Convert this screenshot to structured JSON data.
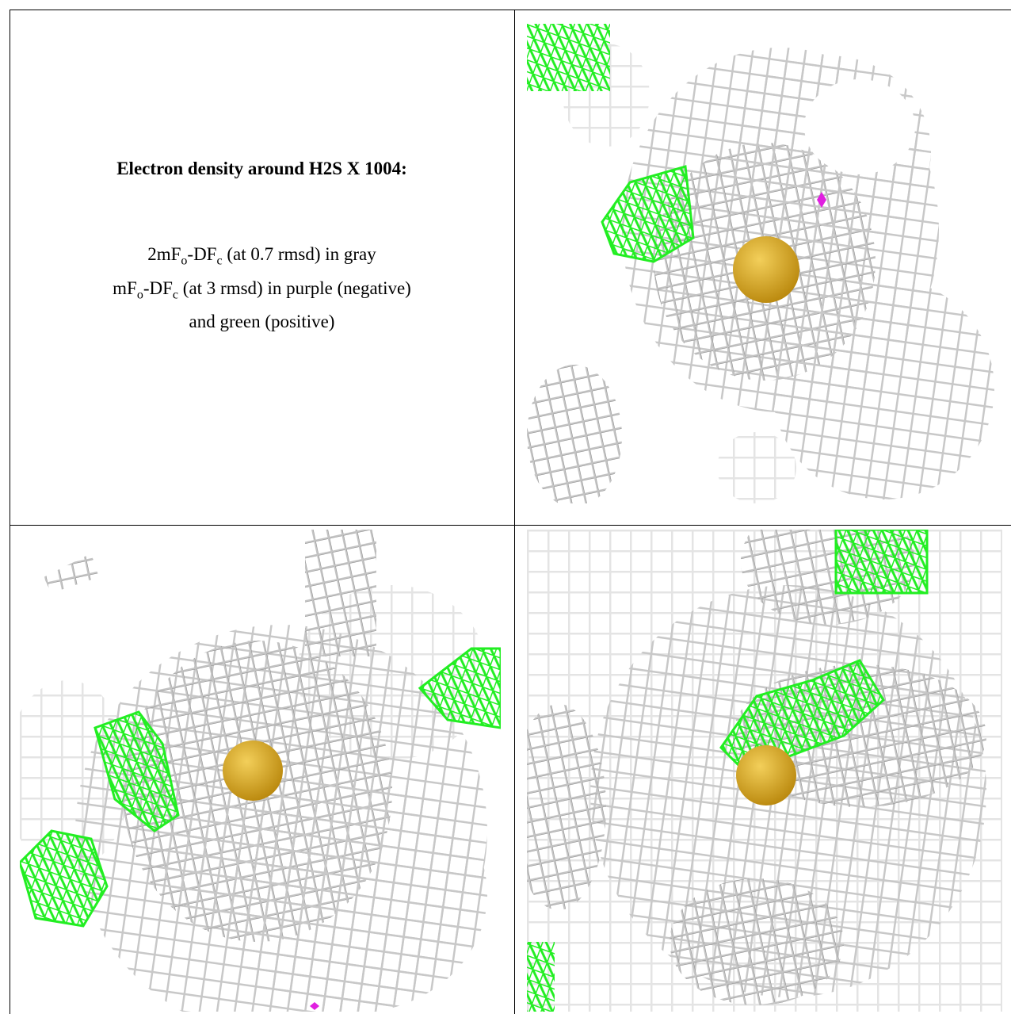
{
  "caption": {
    "title": "Electron density around H2S X 1004:",
    "lines": [
      [
        "2mF",
        "o",
        "-DF",
        "c",
        " (at 0.7 rmsd) in gray"
      ],
      [
        "mF",
        "o",
        "-DF",
        "c",
        " (at 3 rmsd) in purple (negative)"
      ],
      [
        "and green (positive)"
      ]
    ]
  }
}
